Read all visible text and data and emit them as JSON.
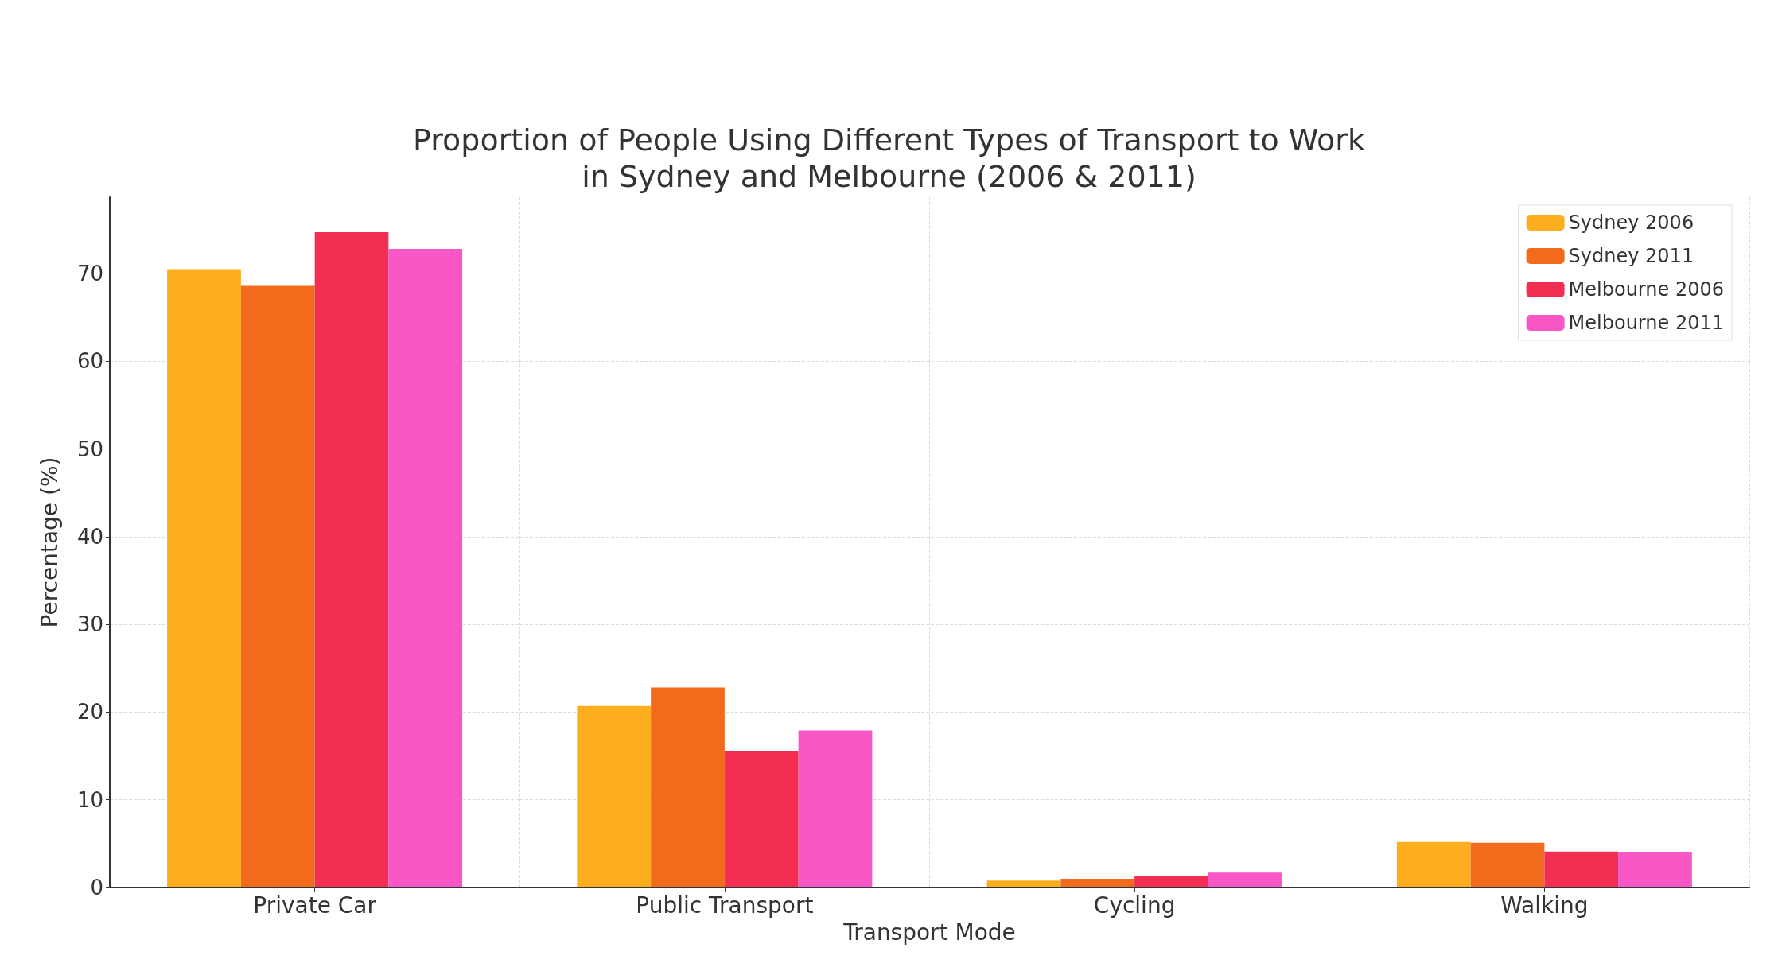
{
  "chart_data": {
    "type": "bar",
    "title": "Proportion of People Using Different Types of Transport to Work\nin Sydney and Melbourne (2006 & 2011)",
    "xlabel": "Transport Mode",
    "ylabel": "Percentage (%)",
    "categories": [
      "Private Car",
      "Public Transport",
      "Cycling",
      "Walking"
    ],
    "series": [
      {
        "name": "Sydney 2006",
        "color": "#fcae1e",
        "values": [
          70.5,
          20.7,
          0.8,
          5.2
        ]
      },
      {
        "name": "Sydney 2011",
        "color": "#f26b1d",
        "values": [
          68.6,
          22.8,
          1.0,
          5.1
        ]
      },
      {
        "name": "Melbourne 2006",
        "color": "#f22e52",
        "values": [
          74.7,
          15.5,
          1.3,
          4.1
        ]
      },
      {
        "name": "Melbourne 2011",
        "color": "#f957c6",
        "values": [
          72.8,
          17.9,
          1.7,
          4.0
        ]
      }
    ],
    "ylim": [
      0,
      78.7
    ],
    "yticks": [
      0,
      10,
      20,
      30,
      40,
      50,
      60,
      70
    ],
    "grid": true,
    "legend": "top right"
  }
}
